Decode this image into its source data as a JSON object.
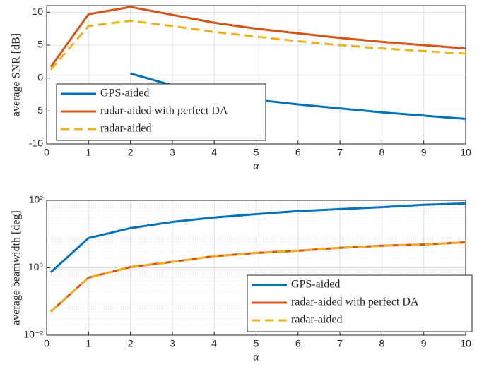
{
  "chart_data": [
    {
      "type": "line",
      "x": [
        0.1,
        1,
        2,
        3,
        4,
        5,
        6,
        7,
        8,
        9,
        10
      ],
      "xlabel": "α",
      "ylabel": "average SNR [dB]",
      "xlim": [
        0,
        10
      ],
      "xticks": [
        0,
        1,
        2,
        3,
        4,
        5,
        6,
        7,
        8,
        9,
        10
      ],
      "ylim": [
        -10,
        11
      ],
      "yticks": [
        -10,
        -5,
        0,
        5,
        10
      ],
      "grid": true,
      "legend": "lower left",
      "series": [
        {
          "name": "GPS-aided",
          "color": "#0072bd",
          "dash": false,
          "values": [
            null,
            null,
            0.7,
            -1.1,
            -2.4,
            -3.3,
            -4.0,
            -4.6,
            -5.2,
            -5.7,
            -6.2
          ]
        },
        {
          "name": "radar-aided with perfect DA",
          "color": "#d95319",
          "dash": false,
          "values": [
            1.7,
            9.7,
            10.8,
            9.6,
            8.4,
            7.5,
            6.8,
            6.1,
            5.5,
            5.0,
            4.5
          ]
        },
        {
          "name": "radar-aided",
          "color": "#edb120",
          "dash": true,
          "values": [
            1.3,
            7.9,
            8.7,
            7.9,
            7.0,
            6.3,
            5.6,
            5.0,
            4.5,
            4.1,
            3.7
          ]
        }
      ]
    },
    {
      "type": "line",
      "x": [
        0.1,
        1,
        2,
        3,
        4,
        5,
        6,
        7,
        8,
        9,
        10
      ],
      "xlabel": "α",
      "ylabel": "average beamwidth [deg]",
      "xlim": [
        0,
        10
      ],
      "xticks": [
        0,
        1,
        2,
        3,
        4,
        5,
        6,
        7,
        8,
        9,
        10
      ],
      "ylim": [
        0.01,
        100
      ],
      "log_y": true,
      "yticks": [
        {
          "value": 0.01,
          "label": "10⁻²"
        },
        {
          "value": 1,
          "label": "10⁰"
        },
        {
          "value": 100,
          "label": "10²"
        }
      ],
      "grid": true,
      "legend": "lower right",
      "series": [
        {
          "name": "GPS-aided",
          "color": "#0072bd",
          "dash": false,
          "values": [
            0.74,
            7.6,
            15,
            23,
            31,
            39,
            48,
            55,
            63,
            74,
            81
          ]
        },
        {
          "name": "radar-aided with perfect DA",
          "color": "#d95319",
          "dash": false,
          "values": [
            0.05,
            0.51,
            1.05,
            1.5,
            2.2,
            2.75,
            3.2,
            3.9,
            4.5,
            4.9,
            5.7
          ]
        },
        {
          "name": "radar-aided",
          "color": "#edb120",
          "dash": true,
          "values": [
            0.05,
            0.51,
            1.05,
            1.5,
            2.2,
            2.75,
            3.2,
            3.9,
            4.5,
            4.9,
            5.7
          ]
        }
      ]
    }
  ]
}
